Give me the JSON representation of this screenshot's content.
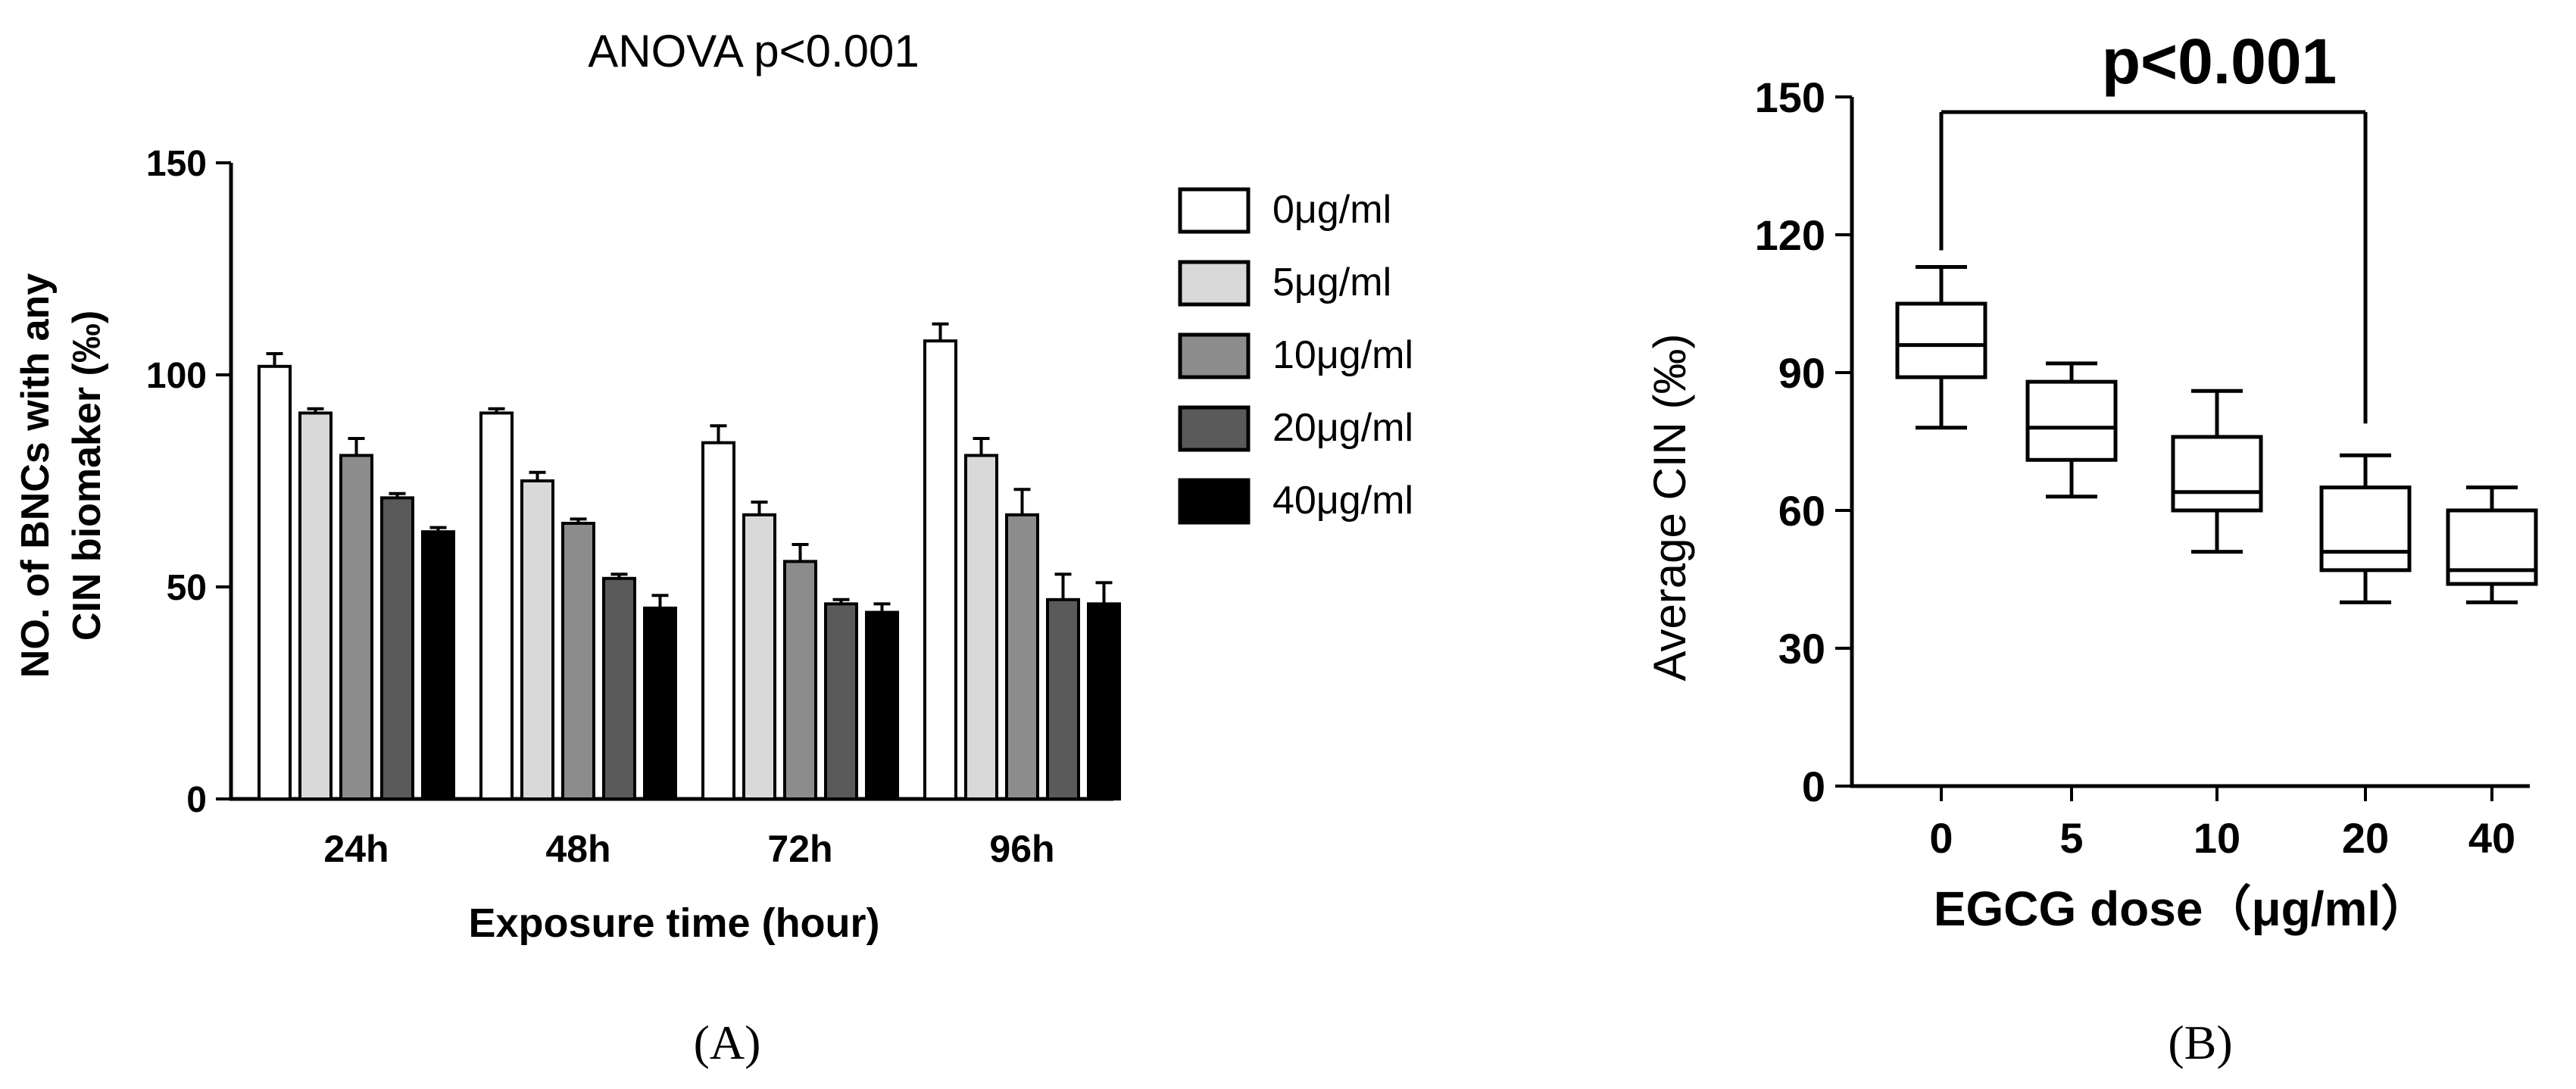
{
  "chart_data": [
    {
      "type": "bar",
      "panel": "A",
      "panel_label": "(A)",
      "title": "ANOVA p<0.001",
      "xlabel": "Exposure time (hour)",
      "ylabel_lines": [
        "NO. of BNCs with any",
        "CIN biomaker (‰)"
      ],
      "ylim": [
        0,
        150
      ],
      "yticks": [
        "0",
        "50",
        "100",
        "150"
      ],
      "categories": [
        "24h",
        "48h",
        "72h",
        "96h"
      ],
      "series": [
        {
          "name": "0μg/ml",
          "color": "#ffffff",
          "values": [
            102,
            91,
            84,
            108
          ],
          "errors": [
            3,
            1,
            4,
            4
          ]
        },
        {
          "name": "5μg/ml",
          "color": "#d9d9d9",
          "values": [
            91,
            75,
            67,
            81
          ],
          "errors": [
            1,
            2,
            3,
            4
          ]
        },
        {
          "name": "10μg/ml",
          "color": "#8c8c8c",
          "values": [
            81,
            65,
            56,
            67
          ],
          "errors": [
            4,
            1,
            4,
            6
          ]
        },
        {
          "name": "20μg/ml",
          "color": "#5a5a5a",
          "values": [
            71,
            52,
            46,
            47
          ],
          "errors": [
            1,
            1,
            1,
            6
          ]
        },
        {
          "name": "40μg/ml",
          "color": "#000000",
          "values": [
            63,
            45,
            44,
            46
          ],
          "errors": [
            1,
            3,
            2,
            5
          ]
        }
      ]
    },
    {
      "type": "box",
      "panel": "B",
      "panel_label": "(B)",
      "annotation": "p<0.001",
      "xlabel": "EGCG dose（μg/ml）",
      "ylabel": "Average CIN (‰)",
      "ylim": [
        0,
        150
      ],
      "yticks": [
        "0",
        "30",
        "60",
        "90",
        "120",
        "150"
      ],
      "categories": [
        "0",
        "5",
        "10",
        "20",
        "40"
      ],
      "boxes": [
        {
          "min": 78,
          "q1": 89,
          "median": 96,
          "q3": 105,
          "max": 113
        },
        {
          "min": 63,
          "q1": 71,
          "median": 78,
          "q3": 88,
          "max": 92
        },
        {
          "min": 51,
          "q1": 60,
          "median": 64,
          "q3": 76,
          "max": 86
        },
        {
          "min": 40,
          "q1": 47,
          "median": 51,
          "q3": 65,
          "max": 72
        },
        {
          "min": 40,
          "q1": 44,
          "median": 47,
          "q3": 60,
          "max": 65
        }
      ]
    }
  ]
}
